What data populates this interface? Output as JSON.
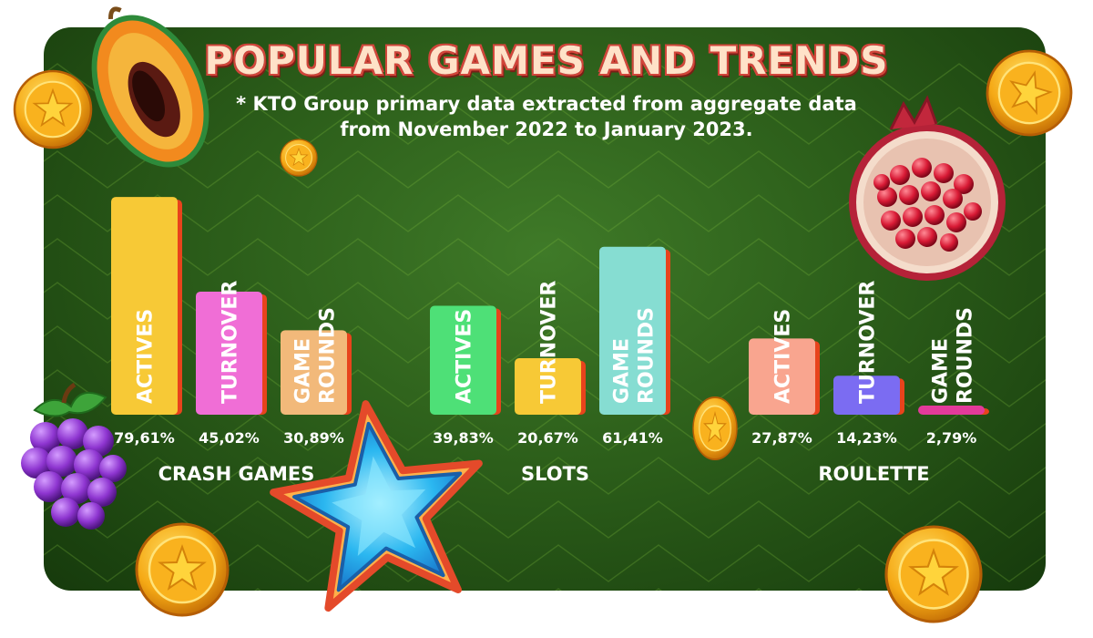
{
  "title": "POPULAR GAMES AND TRENDS",
  "subtitle_line1": "* KTO Group primary data extracted from aggregate data",
  "subtitle_line2": "from November 2022 to January 2023.",
  "chart_data": {
    "type": "bar",
    "title": "POPULAR GAMES AND TRENDS",
    "ylim": [
      0,
      100
    ],
    "grid": false,
    "groups": [
      {
        "category": "CRASH GAMES",
        "bars": [
          {
            "label": "ACTIVES",
            "value": 79.61,
            "value_text": "79,61%",
            "color": "#f7c936"
          },
          {
            "label": "TURNOVER",
            "value": 45.02,
            "value_text": "45,02%",
            "color": "#f06ed6"
          },
          {
            "label": "GAME ROUNDS",
            "value": 30.89,
            "value_text": "30,89%",
            "color": "#f2b97a"
          }
        ]
      },
      {
        "category": "SLOTS",
        "bars": [
          {
            "label": "ACTIVES",
            "value": 39.83,
            "value_text": "39,83%",
            "color": "#4ee077"
          },
          {
            "label": "TURNOVER",
            "value": 20.67,
            "value_text": "20,67%",
            "color": "#f7c936"
          },
          {
            "label": "GAME ROUNDS",
            "value": 61.41,
            "value_text": "61,41%",
            "color": "#86ddd2"
          }
        ]
      },
      {
        "category": "ROULETTE",
        "bars": [
          {
            "label": "ACTIVES",
            "value": 27.87,
            "value_text": "27,87%",
            "color": "#f9a58f"
          },
          {
            "label": "TURNOVER",
            "value": 14.23,
            "value_text": "14,23%",
            "color": "#7b6cf2"
          },
          {
            "label": "GAME ROUNDS",
            "value": 2.79,
            "value_text": "2,79%",
            "color": "#e33a9a"
          }
        ]
      }
    ]
  },
  "colors": {
    "background": "#2c5e1a",
    "bar_shadow": "#e8431c",
    "title_fill": "#ffe2c8",
    "title_outline": "#d2453a"
  },
  "decorations": [
    "papaya-icon",
    "pomegranate-icon",
    "grapes-icon",
    "star-icon",
    "gold-coin-icon"
  ]
}
